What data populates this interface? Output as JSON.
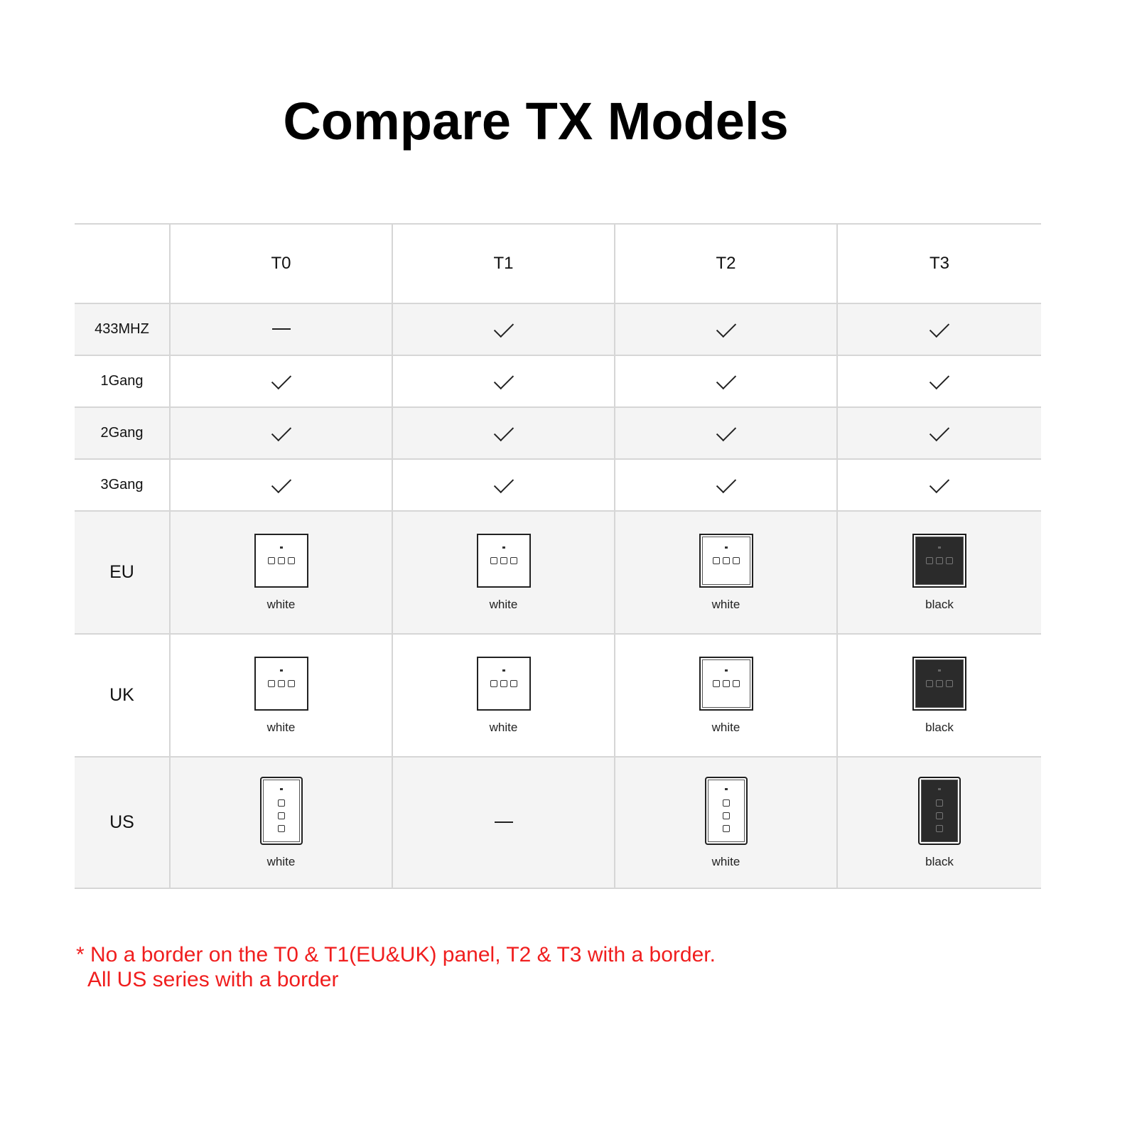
{
  "title": "Compare TX Models",
  "columns": [
    "T0",
    "T1",
    "T2",
    "T3"
  ],
  "features": [
    {
      "label": "433MHZ",
      "values": [
        "—",
        "✓",
        "✓",
        "✓"
      ]
    },
    {
      "label": "1Gang",
      "values": [
        "✓",
        "✓",
        "✓",
        "✓"
      ]
    },
    {
      "label": "2Gang",
      "values": [
        "✓",
        "✓",
        "✓",
        "✓"
      ]
    },
    {
      "label": "3Gang",
      "values": [
        "✓",
        "✓",
        "✓",
        "✓"
      ]
    }
  ],
  "regions": [
    {
      "label": "EU",
      "cells": [
        {
          "color": "white",
          "border": false
        },
        {
          "color": "white",
          "border": false
        },
        {
          "color": "white",
          "border": true
        },
        {
          "color": "black",
          "border": true
        }
      ]
    },
    {
      "label": "UK",
      "cells": [
        {
          "color": "white",
          "border": false
        },
        {
          "color": "white",
          "border": false
        },
        {
          "color": "white",
          "border": true
        },
        {
          "color": "black",
          "border": true
        }
      ]
    },
    {
      "label": "US",
      "cells": [
        {
          "color": "white",
          "border": true
        },
        null,
        {
          "color": "white",
          "border": true
        },
        {
          "color": "black",
          "border": true
        }
      ]
    }
  ],
  "footnote": [
    "* No a border on the T0 & T1(EU&UK) panel, T2 & T3 with a border.",
    "All US series with a border"
  ],
  "colors": {
    "footnote": "#f01e1e",
    "row_alt": "#f4f4f4",
    "panel_black": "#2b2b2b"
  }
}
